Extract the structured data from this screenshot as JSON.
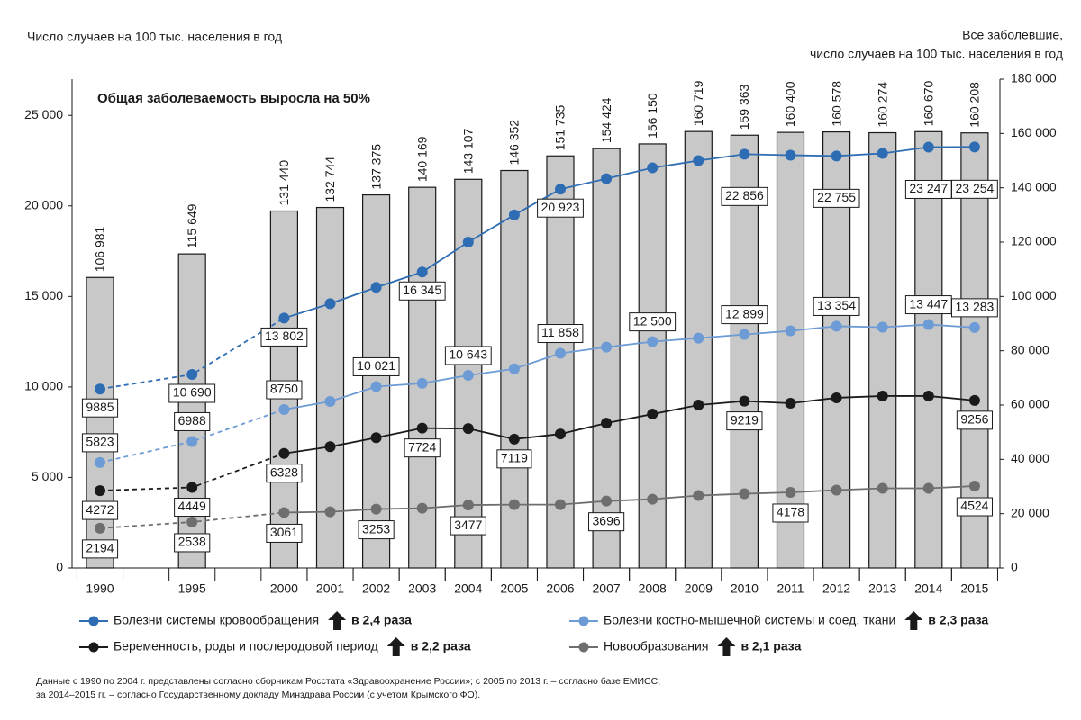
{
  "chart_data": {
    "type": "combo",
    "y_label": "Число случаев на 100 тыс. населения в год",
    "y2_label": [
      "Все заболевшие,",
      "число случаев на 100 тыс. населения в год"
    ],
    "annotation": "Общая заболеваемость выросла на 50%",
    "annotation_color": "#2e6db4",
    "categories": [
      "1990",
      "1995",
      "2000",
      "2001",
      "2002",
      "2003",
      "2004",
      "2005",
      "2006",
      "2007",
      "2008",
      "2009",
      "2010",
      "2011",
      "2012",
      "2013",
      "2014",
      "2015"
    ],
    "ylim": [
      0,
      27000
    ],
    "yticks": [
      0,
      {
        "value": 5000,
        "label": "5 000"
      },
      {
        "value": 10000,
        "label": "10 000"
      },
      {
        "value": 15000,
        "label": "15 000"
      },
      {
        "value": 20000,
        "label": "20 000"
      },
      {
        "value": 25000,
        "label": "25 000"
      }
    ],
    "y2lim": [
      0,
      180000
    ],
    "y2ticks": [
      0,
      {
        "value": 20000,
        "label": "20 000"
      },
      {
        "value": 40000,
        "label": "40 000"
      },
      {
        "value": 60000,
        "label": "60 000"
      },
      {
        "value": 80000,
        "label": "80 000"
      },
      {
        "value": 100000,
        "label": "100 000"
      },
      {
        "value": 120000,
        "label": "120 000"
      },
      {
        "value": 140000,
        "label": "140 000"
      },
      {
        "value": 160000,
        "label": "160 000"
      },
      {
        "value": 180000,
        "label": "180 000"
      }
    ],
    "bars": {
      "type": "bar",
      "axis": "y2",
      "color": "#c8c8c8",
      "values": [
        106981,
        115649,
        131440,
        132744,
        137375,
        140169,
        143107,
        146352,
        151735,
        154424,
        156150,
        160719,
        159363,
        160400,
        160578,
        160274,
        160670,
        160208
      ],
      "value_labels": [
        "106 981",
        "115 649",
        "131 440",
        "132 744",
        "137 375",
        "140 169",
        "143 107",
        "146 352",
        "151 735",
        "154 424",
        "156 150",
        "160 719",
        "159 363",
        "160 400",
        "160 578",
        "160 274",
        "160 670",
        "160 208"
      ]
    },
    "series": [
      {
        "type": "line",
        "axis": "y",
        "name": "Болезни системы кровообращения",
        "color": "#2e6db4",
        "change": "в 2,4 раза",
        "values": [
          9885,
          10690,
          13802,
          14600,
          15500,
          16345,
          18000,
          19500,
          20923,
          21500,
          22100,
          22500,
          22856,
          22800,
          22755,
          22900,
          23247,
          23254
        ],
        "value_labels": [
          "9885",
          "10 690",
          "13 802",
          null,
          null,
          "16 345",
          null,
          null,
          "20 923",
          null,
          null,
          null,
          "22 856",
          null,
          "22 755",
          null,
          "23 247",
          "23 254"
        ]
      },
      {
        "type": "line",
        "axis": "y",
        "name": "Болезни костно-мышечной системы и соед. ткани",
        "color": "#6d9bd5",
        "change": "в 2,3 раза",
        "values": [
          5823,
          6988,
          8750,
          9200,
          10021,
          10200,
          10643,
          11000,
          11858,
          12200,
          12500,
          12700,
          12899,
          13100,
          13354,
          13300,
          13447,
          13283
        ],
        "value_labels": [
          "5823",
          "6988",
          "8750",
          null,
          "10 021",
          null,
          "10 643",
          null,
          "11 858",
          null,
          "12 500",
          null,
          "12 899",
          null,
          "13 354",
          null,
          "13 447",
          "13 283"
        ]
      },
      {
        "type": "line",
        "axis": "y",
        "name": "Беременность, роды и послеродовой период",
        "color": "#1a1a1a",
        "change": "в 2,2 раза",
        "values": [
          4272,
          4449,
          6328,
          6700,
          7200,
          7724,
          7700,
          7119,
          7400,
          8000,
          8500,
          9000,
          9219,
          9100,
          9400,
          9500,
          9500,
          9256
        ],
        "value_labels": [
          "4272",
          "4449",
          "6328",
          null,
          null,
          "7724",
          null,
          "7119",
          null,
          null,
          null,
          null,
          "9219",
          null,
          null,
          null,
          null,
          "9256"
        ]
      },
      {
        "type": "line",
        "axis": "y",
        "name": "Новообразования",
        "color": "#6e6e6e",
        "change": "в 2,1 раза",
        "values": [
          2194,
          2538,
          3061,
          3100,
          3253,
          3300,
          3477,
          3500,
          3500,
          3696,
          3800,
          4000,
          4100,
          4178,
          4300,
          4400,
          4400,
          4524
        ],
        "value_labels": [
          "2194",
          "2538",
          "3061",
          null,
          "3253",
          null,
          "3477",
          null,
          null,
          "3696",
          null,
          null,
          null,
          "4178",
          null,
          null,
          null,
          "4524"
        ]
      }
    ],
    "notes": [
      "Данные с 1990 по 2004 г. представлены согласно сборникам Росстата «Здравоохранение России»; с 2005 по 2013 г. – согласно базе ЕМИСС;",
      "за 2014–2015 гг. – согласно Государственному докладу Минздрава России (с учетом Крымского ФО)."
    ]
  }
}
